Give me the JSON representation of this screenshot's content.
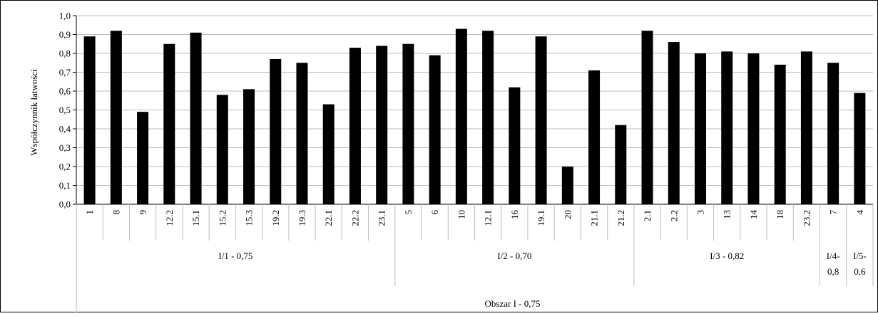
{
  "chart_data": {
    "type": "bar",
    "ylabel": "Współczynnik łatwości",
    "ylim": [
      0,
      1.0
    ],
    "yticks": [
      "0,0",
      "0,1",
      "0,2",
      "0,3",
      "0,4",
      "0,5",
      "0,6",
      "0,7",
      "0,8",
      "0,9",
      "1,0"
    ],
    "grid": true,
    "bar_color": "#000000",
    "categories": [
      "1",
      "8",
      "9",
      "12.2",
      "15.1",
      "15.2",
      "15.3",
      "19.2",
      "19.3",
      "22.1",
      "22.2",
      "23.1",
      "5",
      "6",
      "10",
      "12.1",
      "16",
      "19.1",
      "20",
      "21.1",
      "21.2",
      "2.1",
      "2.2",
      "3",
      "13",
      "14",
      "18",
      "23.2",
      "7",
      "4"
    ],
    "values": [
      0.89,
      0.92,
      0.49,
      0.85,
      0.91,
      0.58,
      0.61,
      0.77,
      0.75,
      0.53,
      0.83,
      0.84,
      0.85,
      0.79,
      0.93,
      0.92,
      0.62,
      0.89,
      0.2,
      0.71,
      0.42,
      0.92,
      0.86,
      0.8,
      0.81,
      0.8,
      0.74,
      0.81,
      0.75,
      0.59
    ],
    "groups": [
      {
        "label_lines": [
          "I/1 - 0,75"
        ],
        "count": 12
      },
      {
        "label_lines": [
          "I/2 - 0,70"
        ],
        "count": 9
      },
      {
        "label_lines": [
          "I/3 - 0,82"
        ],
        "count": 7
      },
      {
        "label_lines": [
          "I/4-",
          "0,8"
        ],
        "count": 1
      },
      {
        "label_lines": [
          "I/5-",
          "0,6"
        ],
        "count": 1
      }
    ],
    "area_label": "Obszar I - 0,75"
  }
}
